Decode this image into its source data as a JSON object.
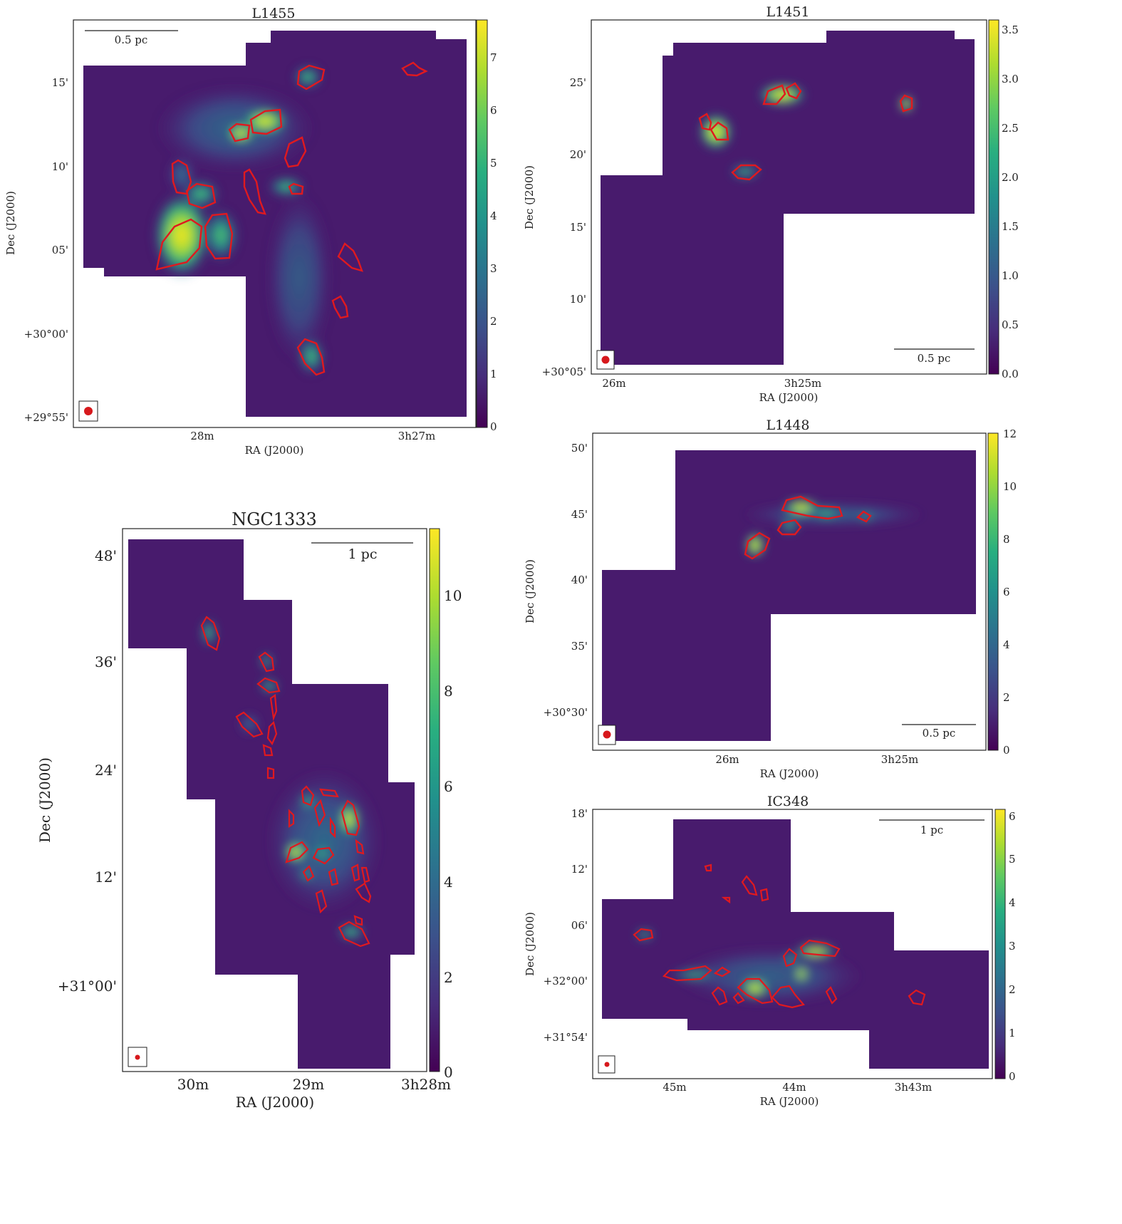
{
  "colormap": {
    "name": "viridis",
    "stops": [
      "#440154",
      "#472d7b",
      "#3b528b",
      "#2c728e",
      "#21918c",
      "#28ae80",
      "#5ec962",
      "#addc30",
      "#fde725"
    ],
    "background": "#481b6d",
    "contour_color": "#e0191f",
    "beam_color": "#d7181c"
  },
  "panels": [
    {
      "id": "L1455",
      "title": "L1455",
      "xlabel": "RA (J2000)",
      "ylabel": "Dec (J2000)",
      "xticks": [
        "28m",
        "3h27m"
      ],
      "yticks": [
        "15'",
        "10'",
        "05'",
        "+30°00'",
        "+29°55'"
      ],
      "cbar_ticks": [
        "7",
        "6",
        "5",
        "4",
        "3",
        "2",
        "1",
        "0"
      ],
      "cbar_range": [
        0,
        7.6
      ],
      "scalebar_label": "0.5 pc",
      "scalebar_position": "top-left"
    },
    {
      "id": "L1451",
      "title": "L1451",
      "xlabel": "RA (J2000)",
      "ylabel": "Dec (J2000)",
      "xticks": [
        "26m",
        "3h25m"
      ],
      "yticks": [
        "25'",
        "20'",
        "15'",
        "10'",
        "+30°05'"
      ],
      "cbar_ticks": [
        "3.5",
        "3.0",
        "2.5",
        "2.0",
        "1.5",
        "1.0",
        "0.5",
        "0.0"
      ],
      "cbar_range": [
        0,
        3.6
      ],
      "scalebar_label": "0.5 pc",
      "scalebar_position": "bottom-right"
    },
    {
      "id": "L1448",
      "title": "L1448",
      "xlabel": "RA (J2000)",
      "ylabel": "Dec (J2000)",
      "xticks": [
        "26m",
        "3h25m"
      ],
      "yticks": [
        "50'",
        "45'",
        "40'",
        "35'",
        "+30°30'"
      ],
      "cbar_ticks": [
        "12",
        "10",
        "8",
        "6",
        "4",
        "2",
        "0"
      ],
      "cbar_range": [
        0,
        12
      ],
      "scalebar_label": "0.5 pc",
      "scalebar_position": "bottom-right"
    },
    {
      "id": "NGC1333",
      "title": "NGC1333",
      "xlabel": "RA (J2000)",
      "ylabel": "Dec (J2000)",
      "xticks": [
        "30m",
        "29m",
        "3h28m"
      ],
      "yticks": [
        "48'",
        "36'",
        "24'",
        "12'",
        "+31°00'"
      ],
      "cbar_ticks": [
        "10",
        "8",
        "6",
        "4",
        "2",
        "0"
      ],
      "cbar_range": [
        0,
        11.3
      ],
      "scalebar_label": "1 pc",
      "scalebar_position": "top-right"
    },
    {
      "id": "IC348",
      "title": "IC348",
      "xlabel": "RA (J2000)",
      "ylabel": "Dec (J2000)",
      "xticks": [
        "45m",
        "44m",
        "3h43m"
      ],
      "yticks": [
        "18'",
        "12'",
        "06'",
        "+32°00'",
        "+31°54'"
      ],
      "cbar_ticks": [
        "6",
        "5",
        "4",
        "3",
        "2",
        "1",
        "0"
      ],
      "cbar_range": [
        0,
        6.1
      ],
      "scalebar_label": "1 pc",
      "scalebar_position": "top-right"
    }
  ],
  "chart_data": [
    {
      "type": "heatmap",
      "title": "L1455",
      "xlabel": "RA (J2000)",
      "ylabel": "Dec (J2000)",
      "x_ticks": [
        "28m",
        "3h27m"
      ],
      "y_ticks": [
        "15'",
        "10'",
        "05'",
        "+30°00'",
        "+29°55'"
      ],
      "colorbar_range": [
        0,
        7.6
      ],
      "colorbar_ticks": [
        0,
        1,
        2,
        3,
        4,
        5,
        6,
        7
      ],
      "colormap": "viridis",
      "contours": "red, dense core boundaries"
    },
    {
      "type": "heatmap",
      "title": "L1451",
      "xlabel": "RA (J2000)",
      "ylabel": "Dec (J2000)",
      "x_ticks": [
        "26m",
        "3h25m"
      ],
      "y_ticks": [
        "25'",
        "20'",
        "15'",
        "10'",
        "+30°05'"
      ],
      "colorbar_range": [
        0,
        3.6
      ],
      "colorbar_ticks": [
        0.0,
        0.5,
        1.0,
        1.5,
        2.0,
        2.5,
        3.0,
        3.5
      ],
      "colormap": "viridis"
    },
    {
      "type": "heatmap",
      "title": "L1448",
      "xlabel": "RA (J2000)",
      "ylabel": "Dec (J2000)",
      "x_ticks": [
        "26m",
        "3h25m"
      ],
      "y_ticks": [
        "50'",
        "45'",
        "40'",
        "35'",
        "+30°30'"
      ],
      "colorbar_range": [
        0,
        12
      ],
      "colorbar_ticks": [
        0,
        2,
        4,
        6,
        8,
        10,
        12
      ],
      "colormap": "viridis"
    },
    {
      "type": "heatmap",
      "title": "NGC1333",
      "xlabel": "RA (J2000)",
      "ylabel": "Dec (J2000)",
      "x_ticks": [
        "30m",
        "29m",
        "3h28m"
      ],
      "y_ticks": [
        "48'",
        "36'",
        "24'",
        "12'",
        "+31°00'"
      ],
      "colorbar_range": [
        0,
        11.3
      ],
      "colorbar_ticks": [
        0,
        2,
        4,
        6,
        8,
        10
      ],
      "colormap": "viridis"
    },
    {
      "type": "heatmap",
      "title": "IC348",
      "xlabel": "RA (J2000)",
      "ylabel": "Dec (J2000)",
      "x_ticks": [
        "45m",
        "44m",
        "3h43m"
      ],
      "y_ticks": [
        "18'",
        "12'",
        "06'",
        "+32°00'",
        "+31°54'"
      ],
      "colorbar_range": [
        0,
        6.1
      ],
      "colorbar_ticks": [
        0,
        1,
        2,
        3,
        4,
        5,
        6
      ],
      "colormap": "viridis"
    }
  ]
}
